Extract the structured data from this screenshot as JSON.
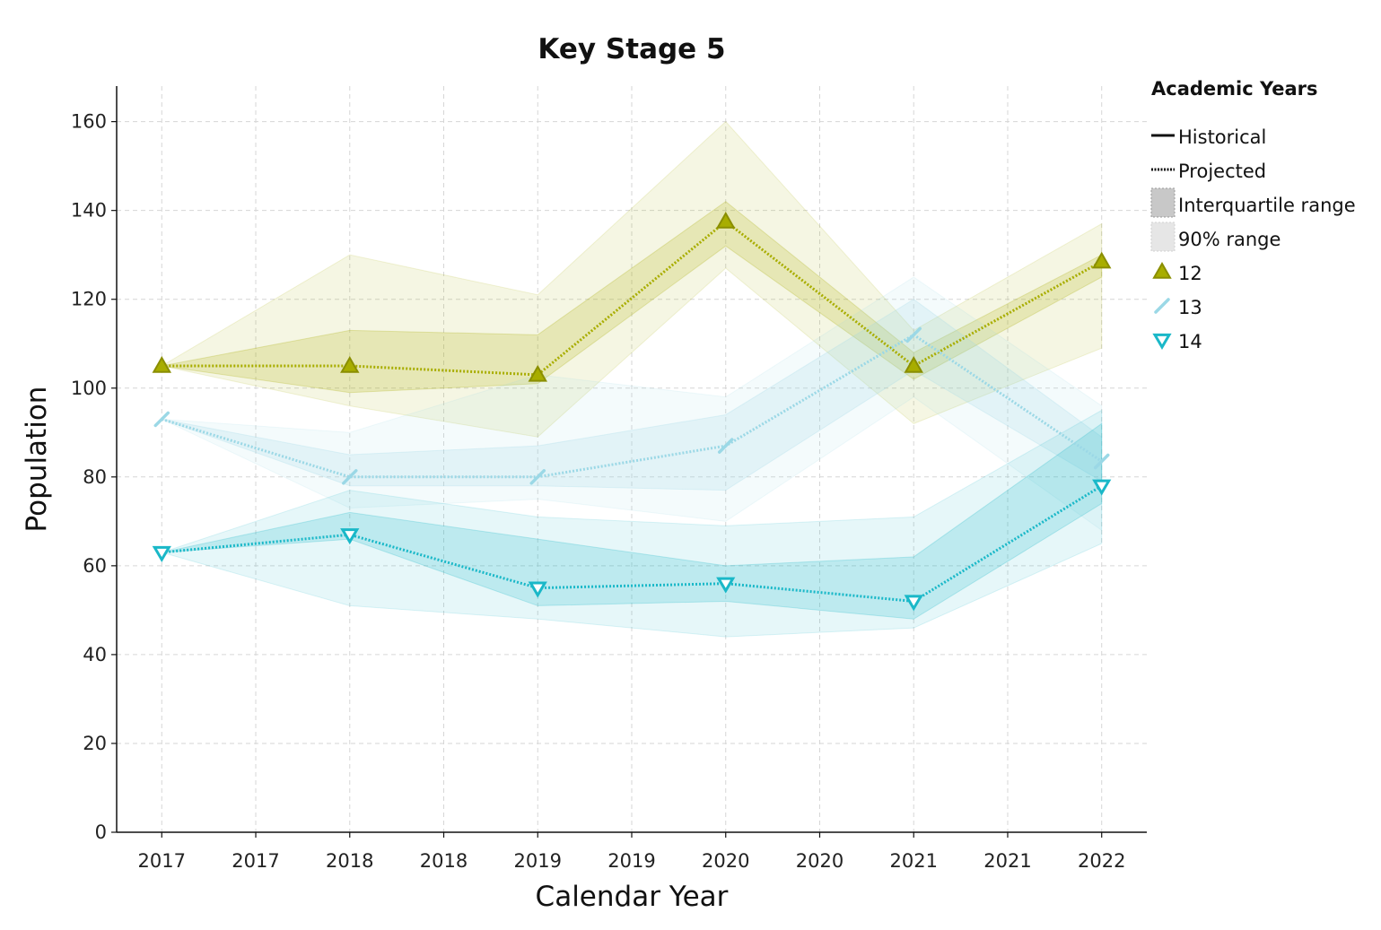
{
  "chart_data": {
    "type": "line",
    "title": "Key Stage 5",
    "xlabel": "Calendar Year",
    "ylabel": "Population",
    "x": [
      2017,
      2018,
      2019,
      2020,
      2021,
      2022
    ],
    "xlim": [
      2016.76,
      2022.24
    ],
    "x_tick_values": [
      2017,
      2017.5,
      2018,
      2018.5,
      2019,
      2019.5,
      2020,
      2020.5,
      2021,
      2021.5,
      2022
    ],
    "x_tick_labels": [
      "2017",
      "2017",
      "2018",
      "2018",
      "2019",
      "2019",
      "2020",
      "2020",
      "2021",
      "2021",
      "2022"
    ],
    "ylim": [
      0,
      168
    ],
    "y_ticks": [
      0,
      20,
      40,
      60,
      80,
      100,
      120,
      140,
      160
    ],
    "y_tick_labels": [
      "0",
      "20",
      "40",
      "60",
      "80",
      "100",
      "120",
      "140",
      "160"
    ],
    "grid": true,
    "legend": {
      "title": "Academic Years",
      "placement": "right",
      "style_items": [
        {
          "label": "Historical",
          "kind": "solid-line"
        },
        {
          "label": "Projected",
          "kind": "dotted-line"
        },
        {
          "label": "Interquartile range",
          "kind": "dark-band"
        },
        {
          "label": "90% range",
          "kind": "light-band"
        }
      ]
    },
    "series": [
      {
        "name": "12",
        "color": "#a8ad00",
        "marker": "triangle-up",
        "values": [
          105,
          105,
          103,
          137.5,
          105,
          128.5
        ],
        "iqr_low": [
          105,
          99,
          101,
          132,
          102,
          125
        ],
        "iqr_high": [
          105,
          113,
          112,
          142,
          108,
          130
        ],
        "p90_low": [
          105,
          96,
          89,
          127,
          92,
          109
        ],
        "p90_high": [
          105,
          130,
          121,
          160,
          113,
          137
        ]
      },
      {
        "name": "13",
        "color": "#9bd8e6",
        "marker": "slash",
        "values": [
          93,
          80,
          80,
          87,
          112,
          83.5
        ],
        "iqr_low": [
          93,
          78,
          78,
          77,
          104,
          79
        ],
        "iqr_high": [
          93,
          85,
          87,
          94,
          120,
          89
        ],
        "p90_low": [
          93,
          73,
          75,
          70,
          98,
          68
        ],
        "p90_high": [
          93,
          90,
          103,
          98,
          125,
          96
        ]
      },
      {
        "name": "14",
        "color": "#1ab8c8",
        "marker": "triangle-down",
        "values": [
          63,
          67,
          55,
          56,
          52,
          78
        ],
        "iqr_low": [
          63,
          66,
          51,
          52,
          48,
          74
        ],
        "iqr_high": [
          63,
          72,
          66,
          60,
          62,
          92
        ],
        "p90_low": [
          63,
          51,
          48,
          44,
          46,
          65
        ],
        "p90_high": [
          63,
          77,
          71,
          69,
          71,
          95
        ]
      }
    ]
  }
}
